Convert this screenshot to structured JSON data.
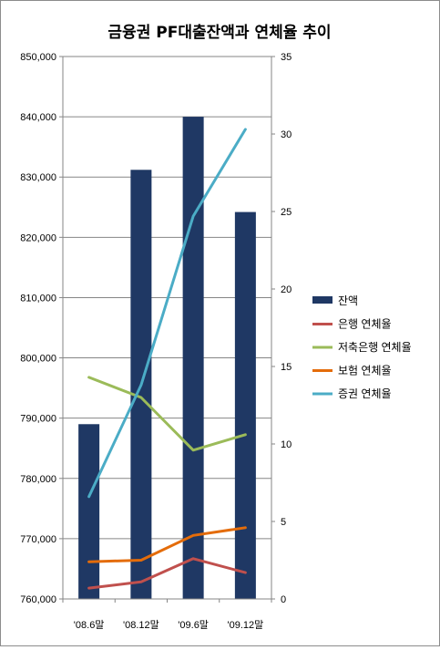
{
  "chart_data": {
    "type": "bar",
    "title": "금융권 PF대출잔액과 연체율 추이",
    "categories": [
      "'08.6말",
      "'08.12말",
      "'09.6말",
      "'09.12말"
    ],
    "y_left": {
      "min": 760000,
      "max": 850000,
      "step": 10000,
      "tick_labels": [
        "760,000",
        "770,000",
        "780,000",
        "790,000",
        "800,000",
        "810,000",
        "820,000",
        "830,000",
        "840,000",
        "850,000"
      ]
    },
    "y_right": {
      "min": 0,
      "max": 35,
      "step": 5,
      "tick_labels": [
        "0",
        "5",
        "10",
        "15",
        "20",
        "25",
        "30",
        "35"
      ]
    },
    "grid": true,
    "legend_position": "right",
    "bar_series": {
      "name": "잔액",
      "axis": "left",
      "color": "#1f3864",
      "values": [
        789000,
        831200,
        840000,
        824200
      ]
    },
    "line_series": [
      {
        "name": "은행 연체율",
        "axis": "right",
        "color": "#c0504d",
        "values": [
          0.7,
          1.1,
          2.6,
          1.7
        ]
      },
      {
        "name": "저축은행 연체율",
        "axis": "right",
        "color": "#9bbb59",
        "values": [
          14.3,
          13.0,
          9.6,
          10.6
        ]
      },
      {
        "name": "보험 연체율",
        "axis": "right",
        "color": "#e46c0a",
        "values": [
          2.4,
          2.5,
          4.1,
          4.6
        ]
      },
      {
        "name": "증권 연체율",
        "axis": "right",
        "color": "#4bacc6",
        "values": [
          6.6,
          13.8,
          24.7,
          30.3
        ]
      }
    ]
  }
}
